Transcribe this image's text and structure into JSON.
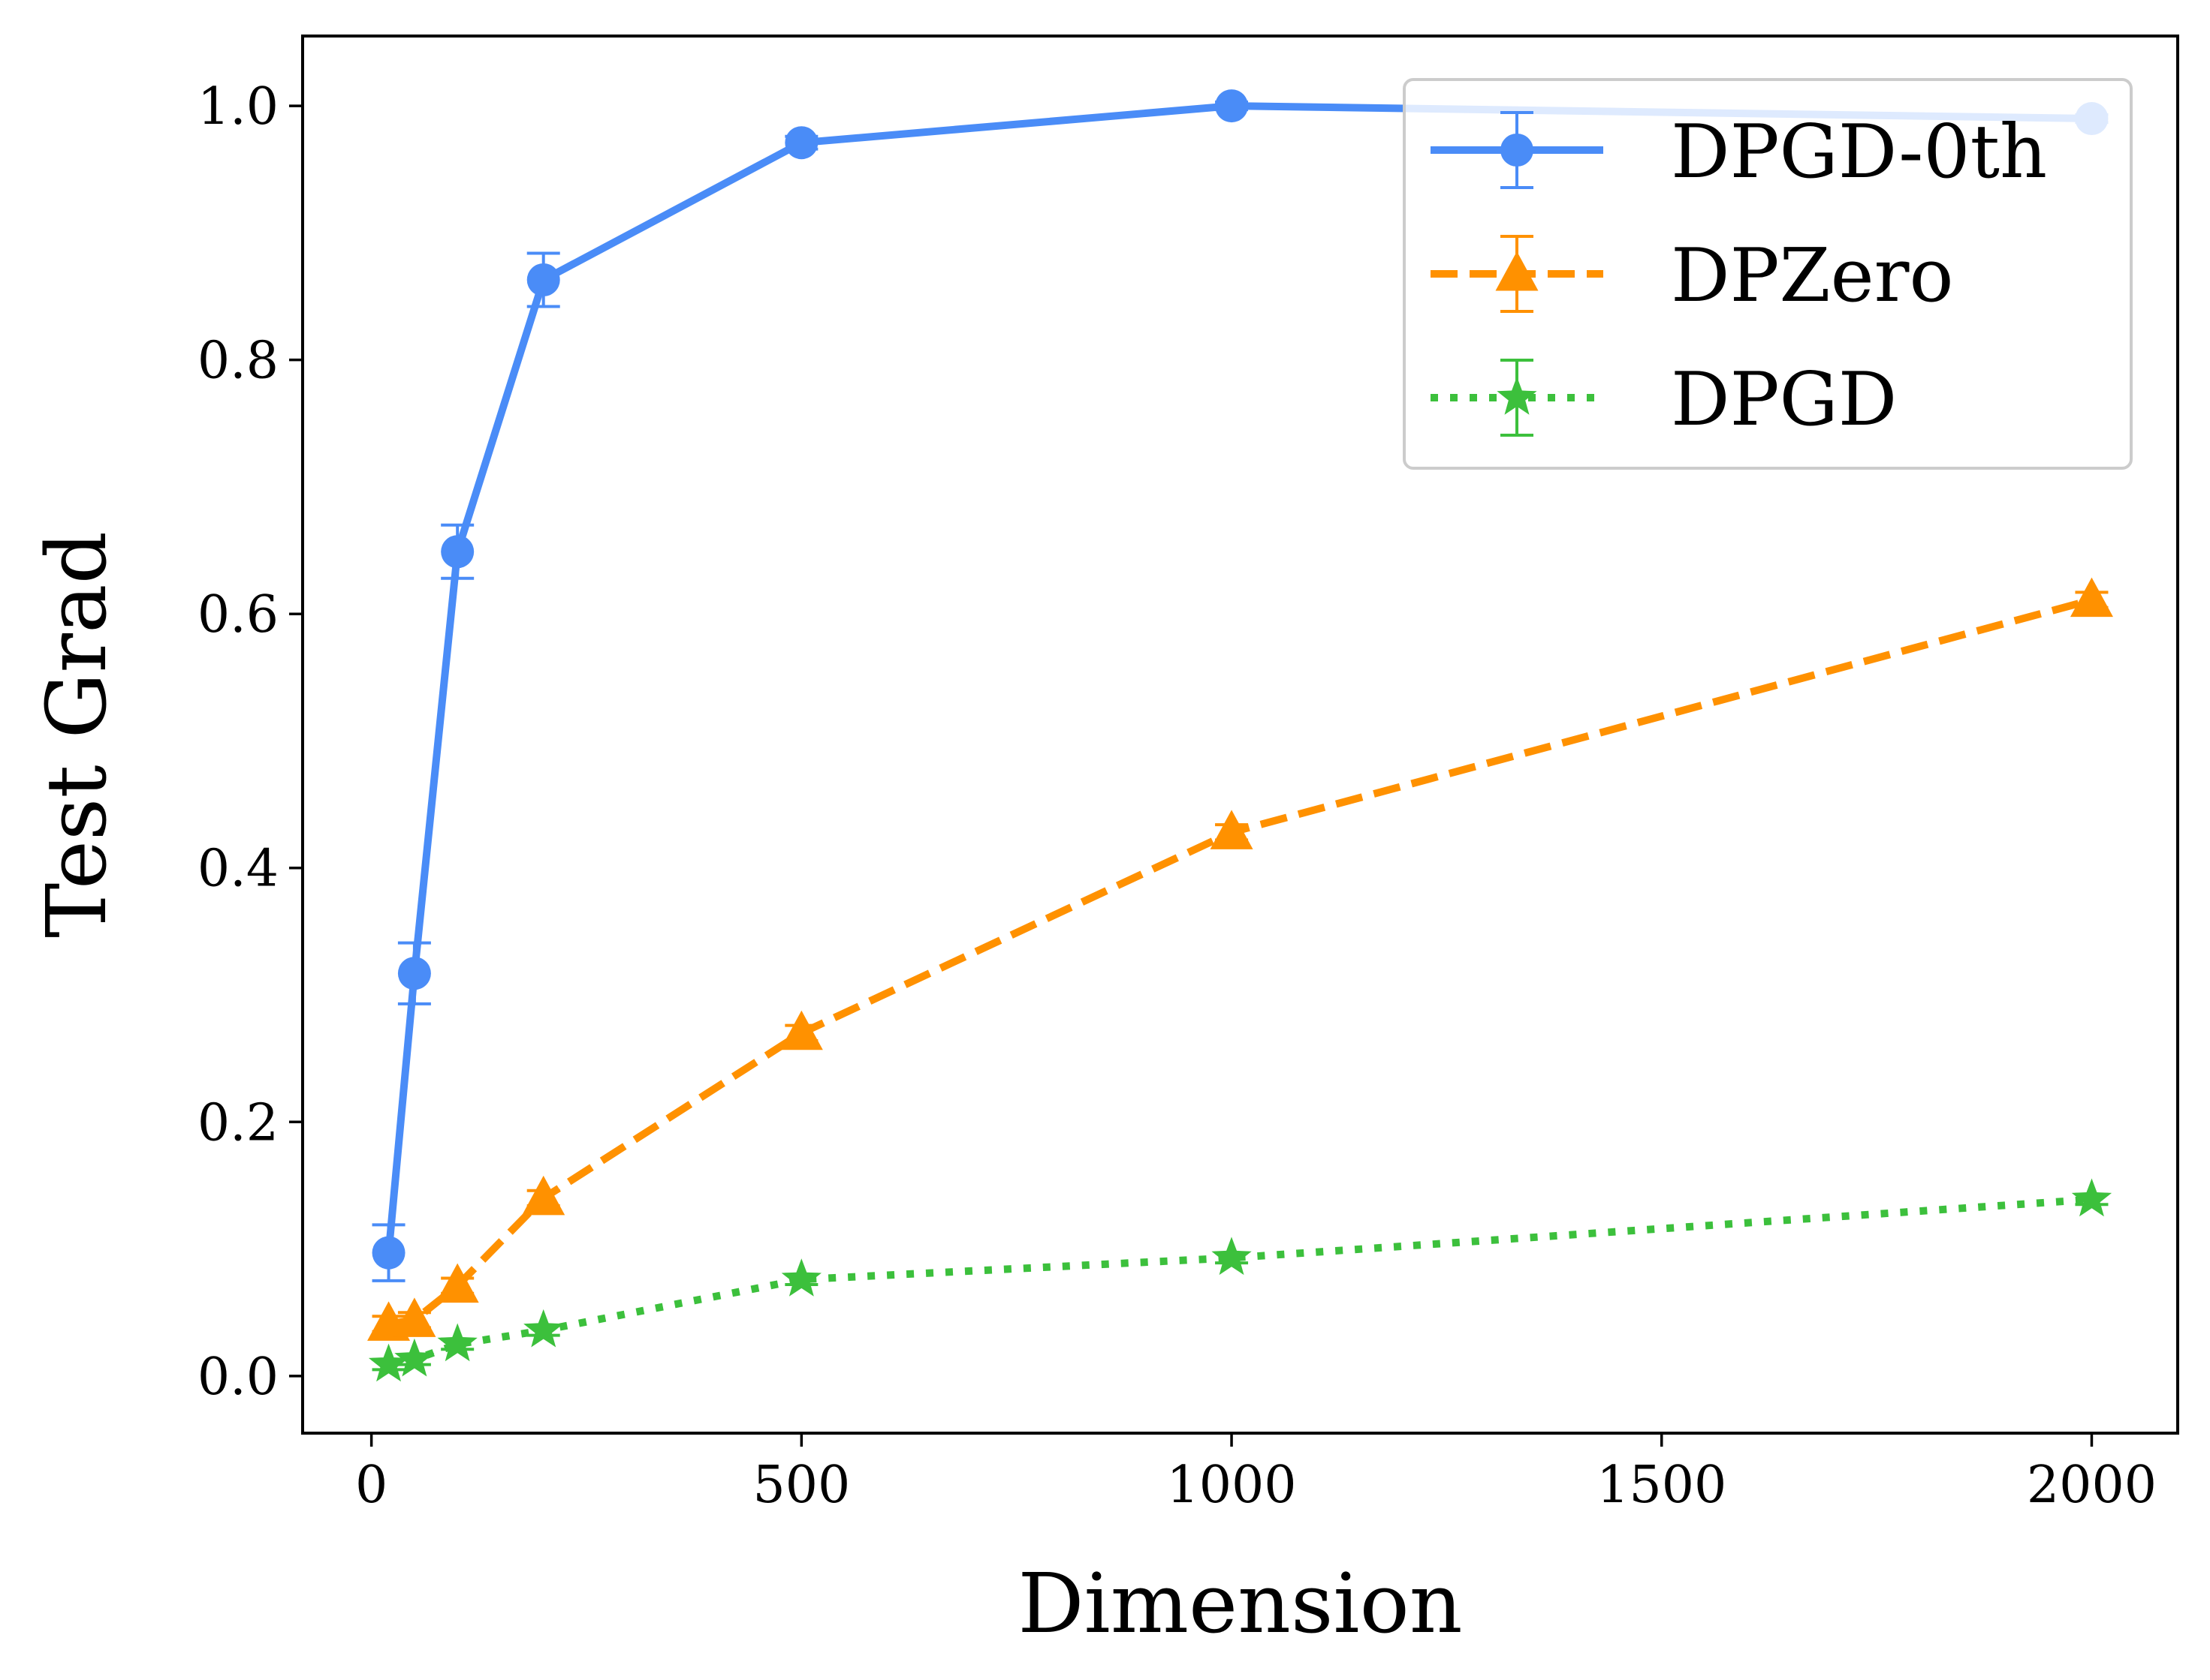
{
  "chart_data": {
    "type": "line",
    "title": "",
    "xlabel": "Dimension",
    "ylabel": "Test Grad",
    "xlim": [
      -80,
      2100
    ],
    "ylim": [
      -0.045,
      1.055
    ],
    "xticks": [
      0,
      500,
      1000,
      1500,
      2000
    ],
    "xtick_labels": [
      "0",
      "500",
      "1000",
      "1500",
      "2000"
    ],
    "yticks": [
      0.0,
      0.2,
      0.4,
      0.6,
      0.8,
      1.0
    ],
    "ytick_labels": [
      "0.0",
      "0.2",
      "0.4",
      "0.6",
      "0.8",
      "1.0"
    ],
    "grid": false,
    "legend_position": "top-right",
    "x": [
      20,
      50,
      100,
      200,
      500,
      1000,
      2000
    ],
    "series": [
      {
        "name": "DPGD-0th",
        "color": "#4a8cf7",
        "linestyle": "solid",
        "marker": "circle",
        "values": [
          0.097,
          0.317,
          0.649,
          0.863,
          0.971,
          1.0,
          0.99
        ],
        "errors": [
          0.022,
          0.024,
          0.021,
          0.021,
          0.005,
          0.003,
          0.003
        ]
      },
      {
        "name": "DPZero",
        "color": "#ff9100",
        "linestyle": "dashed",
        "marker": "triangle",
        "values": [
          0.041,
          0.044,
          0.071,
          0.14,
          0.27,
          0.428,
          0.611
        ],
        "errors": [
          0.006,
          0.006,
          0.006,
          0.006,
          0.006,
          0.006,
          0.006
        ]
      },
      {
        "name": "DPGD",
        "color": "#3cc03c",
        "linestyle": "dotted",
        "marker": "star",
        "values": [
          0.009,
          0.013,
          0.025,
          0.036,
          0.076,
          0.093,
          0.139
        ],
        "errors": [
          0.004,
          0.004,
          0.004,
          0.004,
          0.004,
          0.004,
          0.004
        ]
      }
    ]
  }
}
